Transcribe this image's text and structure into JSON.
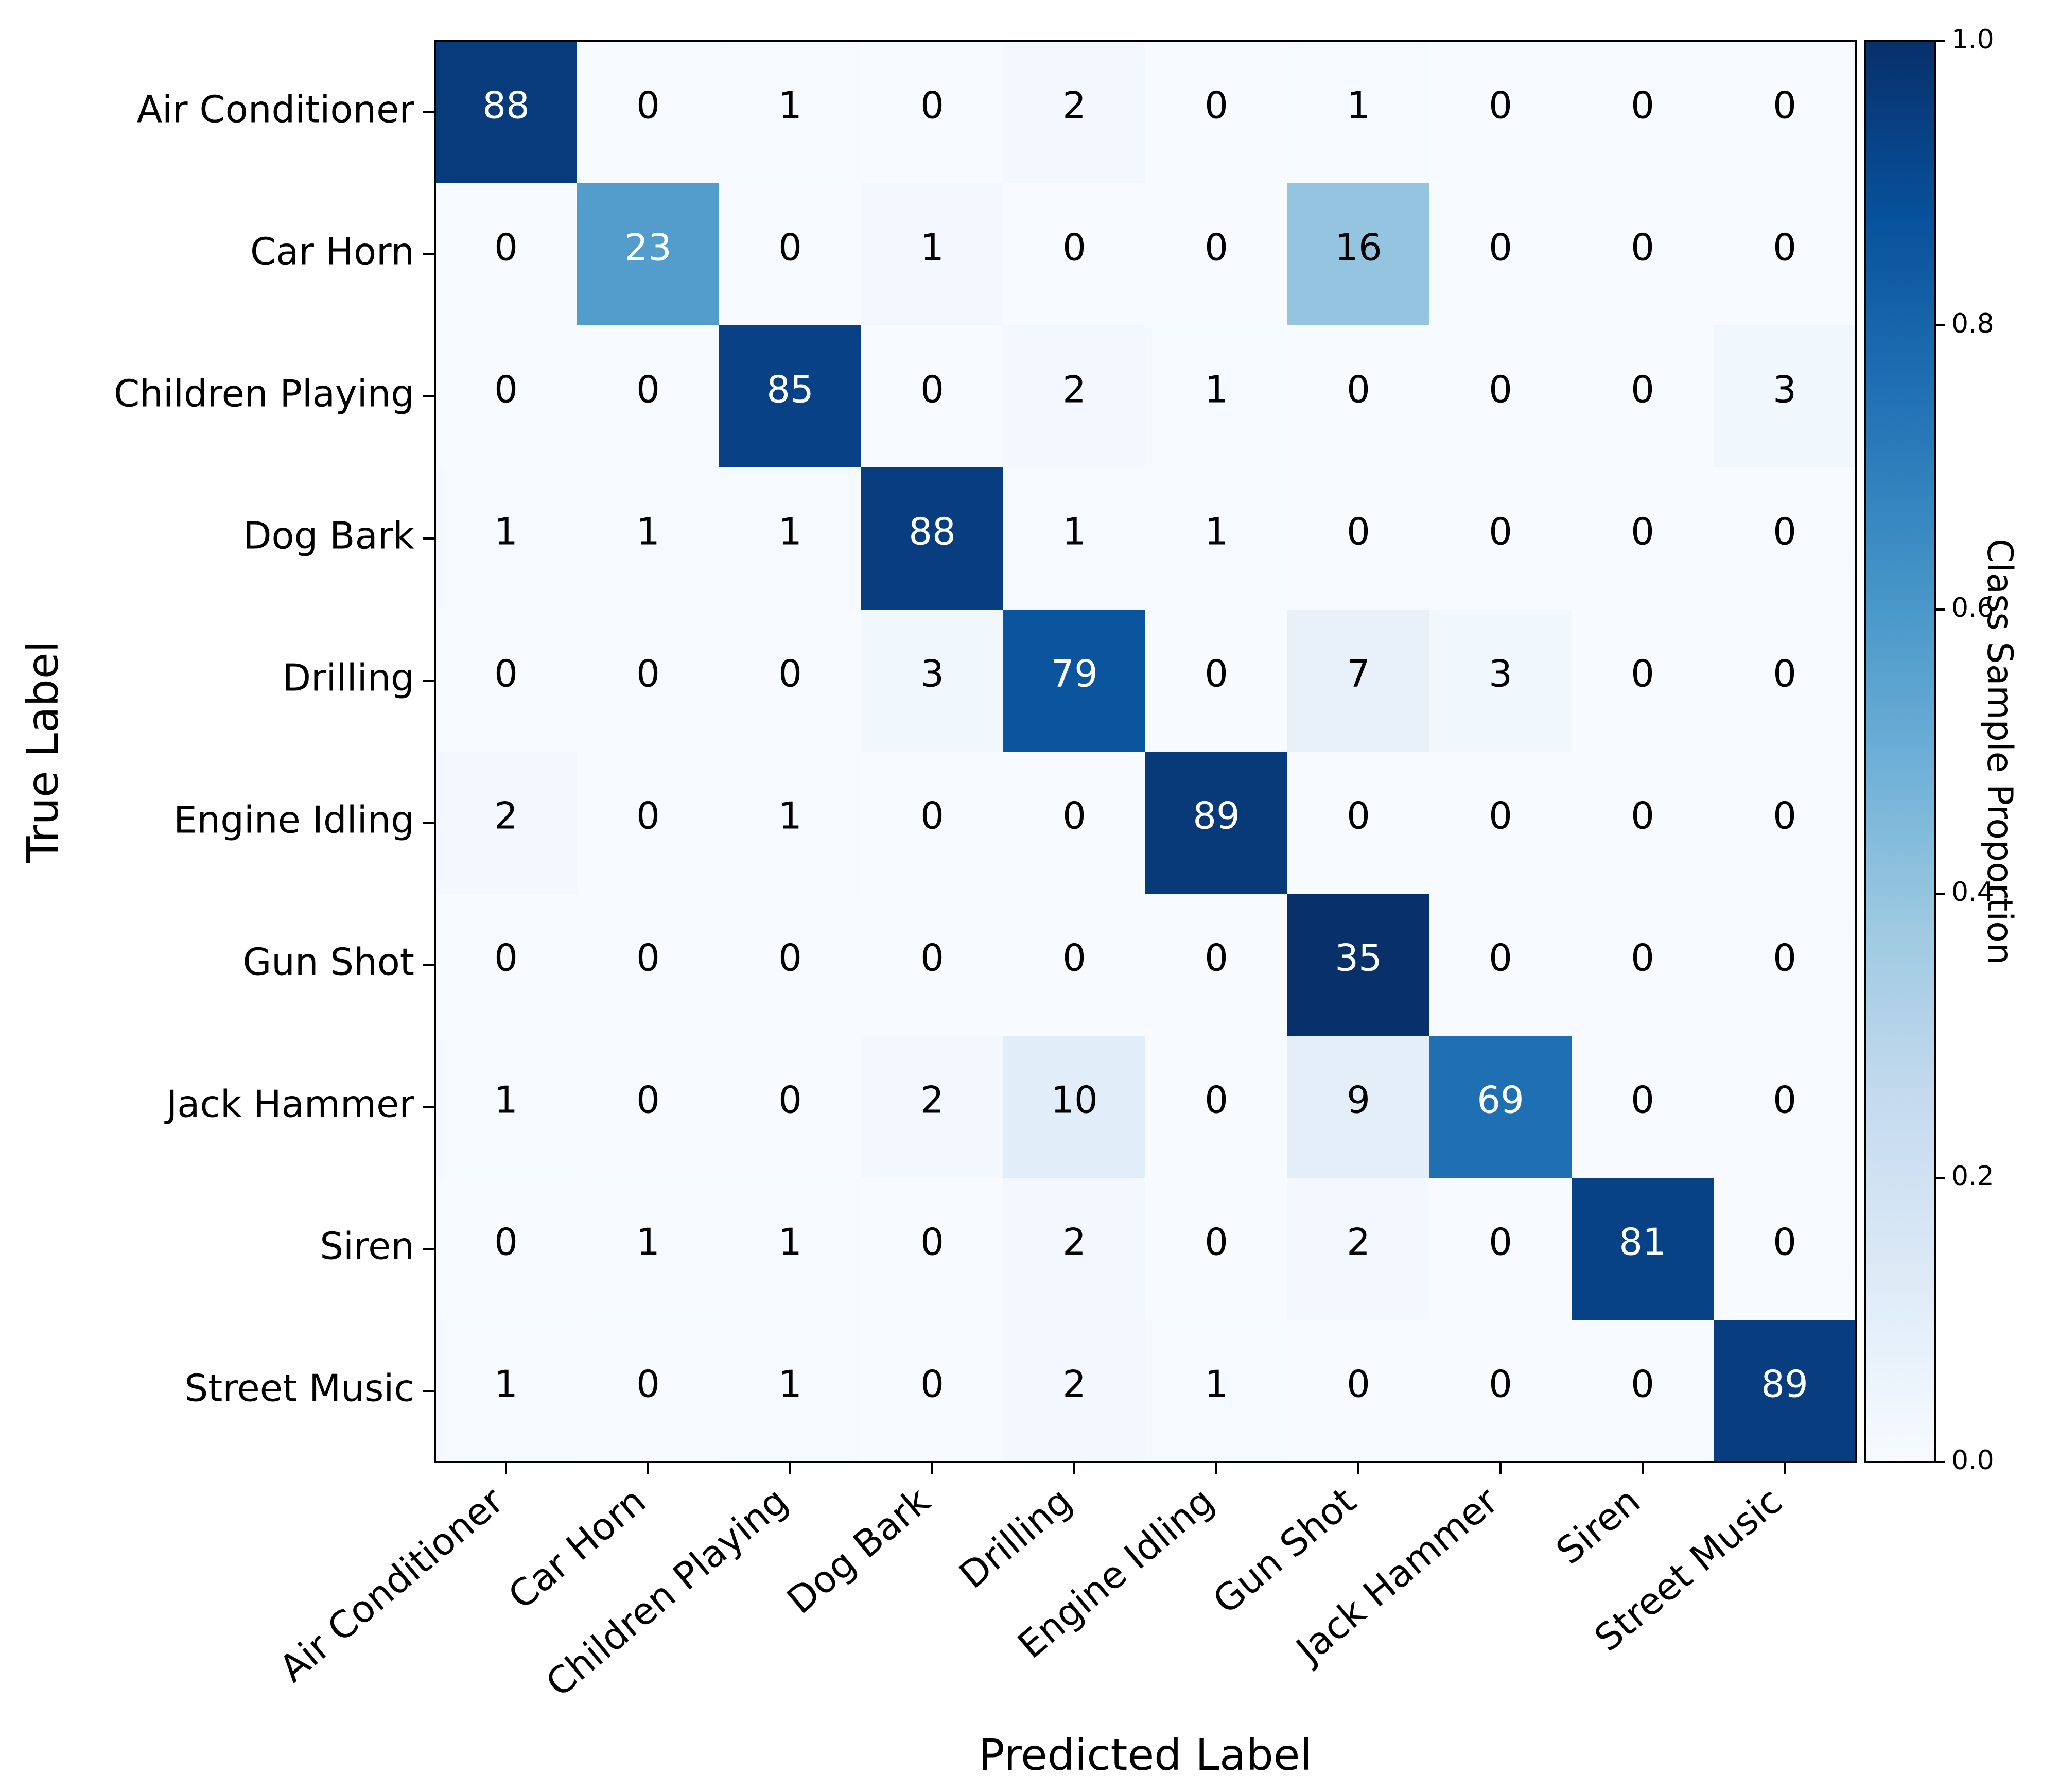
{
  "chart_data": {
    "type": "heatmap",
    "xlabel": "Predicted Label",
    "ylabel": "True Label",
    "x_categories": [
      "Air Conditioner",
      "Car Horn",
      "Children Playing",
      "Dog Bark",
      "Drilling",
      "Engine Idling",
      "Gun Shot",
      "Jack Hammer",
      "Siren",
      "Street Music"
    ],
    "y_categories": [
      "Air Conditioner",
      "Car Horn",
      "Children Playing",
      "Dog Bark",
      "Drilling",
      "Engine Idling",
      "Gun Shot",
      "Jack Hammer",
      "Siren",
      "Street Music"
    ],
    "values": [
      [
        88,
        0,
        1,
        0,
        2,
        0,
        1,
        0,
        0,
        0
      ],
      [
        0,
        23,
        0,
        1,
        0,
        0,
        16,
        0,
        0,
        0
      ],
      [
        0,
        0,
        85,
        0,
        2,
        1,
        0,
        0,
        0,
        3
      ],
      [
        1,
        1,
        1,
        88,
        1,
        1,
        0,
        0,
        0,
        0
      ],
      [
        0,
        0,
        0,
        3,
        79,
        0,
        7,
        3,
        0,
        0
      ],
      [
        2,
        0,
        1,
        0,
        0,
        89,
        0,
        0,
        0,
        0
      ],
      [
        0,
        0,
        0,
        0,
        0,
        0,
        35,
        0,
        0,
        0
      ],
      [
        1,
        0,
        0,
        2,
        10,
        0,
        9,
        69,
        0,
        0
      ],
      [
        0,
        1,
        1,
        0,
        2,
        0,
        2,
        0,
        81,
        0
      ],
      [
        1,
        0,
        1,
        0,
        2,
        1,
        0,
        0,
        0,
        89
      ]
    ],
    "colorbar": {
      "label": "Class Sample Proportion",
      "range": [
        0.0,
        1.0
      ],
      "ticks": [
        "0.0",
        "0.2",
        "0.4",
        "0.6",
        "0.8",
        "1.0"
      ],
      "colormap": "Blues"
    },
    "colors": {
      "low": "#f7fbff",
      "high": "#08306b",
      "text_dark": "#000000",
      "text_light": "#ffffff"
    },
    "grid": false
  }
}
